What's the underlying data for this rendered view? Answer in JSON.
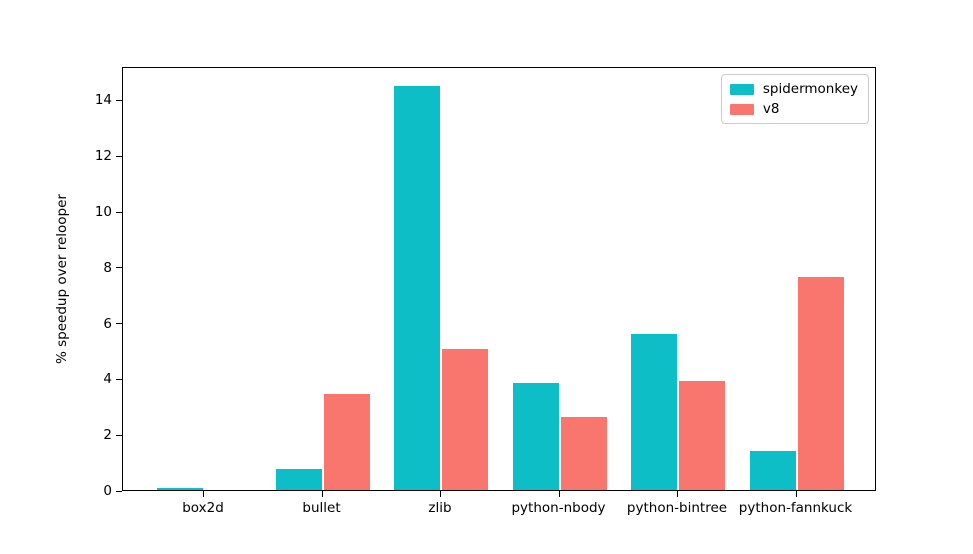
{
  "figure": {
    "background": "#ffffff"
  },
  "chart_data": {
    "type": "bar",
    "title": "",
    "xlabel": "",
    "ylabel": "% speedup over relooper",
    "categories": [
      "box2d",
      "bullet",
      "zlib",
      "python-nbody",
      "python-bintree",
      "python-fannkuck"
    ],
    "series": [
      {
        "name": "spidermonkey",
        "color": "#0DBEC7",
        "values": [
          0.08,
          0.75,
          14.5,
          3.85,
          5.6,
          1.4
        ]
      },
      {
        "name": "v8",
        "color": "#F8766D",
        "values": [
          0.0,
          3.45,
          5.05,
          2.6,
          3.9,
          7.65
        ]
      }
    ],
    "ylim": [
      0,
      15.2
    ],
    "yticks": [
      0,
      2,
      4,
      6,
      8,
      10,
      12,
      14
    ],
    "grid": false,
    "legend": {
      "position": "upper right",
      "entries": [
        "spidermonkey",
        "v8"
      ]
    }
  }
}
